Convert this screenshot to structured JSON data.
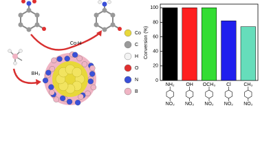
{
  "diagram": {
    "reaction_label": "Co-H",
    "reagent_label": "BH₃",
    "legend": [
      {
        "label": "Co",
        "color": "#e8d83a"
      },
      {
        "label": "C",
        "color": "#9a9a9a"
      },
      {
        "label": "H",
        "color": "#f4f4f4"
      },
      {
        "label": "O",
        "color": "#e03030"
      },
      {
        "label": "N",
        "color": "#3a50d8"
      },
      {
        "label": "B",
        "color": "#f0b4c4"
      }
    ]
  },
  "chart_data": {
    "type": "bar",
    "ylabel": "Conversion (%)",
    "categories": [
      "NH₂",
      "OH",
      "OCH₃",
      "Cl",
      "CH₃"
    ],
    "para_group": "NO₂",
    "values": [
      100,
      100,
      100,
      82,
      74
    ],
    "colors": [
      "#000000",
      "#ff2020",
      "#33dd33",
      "#2020ee",
      "#66ddbb"
    ],
    "ylim": [
      0,
      105
    ],
    "yticks": [
      0,
      20,
      40,
      60,
      80,
      100
    ]
  }
}
